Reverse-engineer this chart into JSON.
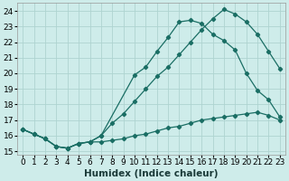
{
  "xlabel": "Humidex (Indice chaleur)",
  "background_color": "#ceecea",
  "grid_color": "#aed4d0",
  "line_color": "#1a6e64",
  "xlim": [
    -0.5,
    23.5
  ],
  "ylim": [
    14.8,
    24.5
  ],
  "xticks": [
    0,
    1,
    2,
    3,
    4,
    5,
    6,
    7,
    8,
    9,
    10,
    11,
    12,
    13,
    14,
    15,
    16,
    17,
    18,
    19,
    20,
    21,
    22,
    23
  ],
  "yticks": [
    15,
    16,
    17,
    18,
    19,
    20,
    21,
    22,
    23,
    24
  ],
  "line1_x": [
    0,
    1,
    2,
    3,
    4,
    5,
    6,
    7,
    8,
    9,
    10,
    11,
    12,
    13,
    14,
    15,
    16,
    17,
    18,
    19,
    20,
    21,
    22,
    23
  ],
  "line1_y": [
    16.4,
    16.1,
    15.8,
    15.3,
    15.2,
    15.5,
    15.6,
    16.0,
    16.8,
    17.4,
    18.2,
    19.0,
    19.8,
    20.4,
    21.2,
    22.0,
    22.8,
    23.5,
    24.1,
    23.8,
    23.3,
    22.5,
    21.4,
    20.3
  ],
  "line2_x": [
    0,
    1,
    2,
    3,
    4,
    5,
    6,
    7,
    10,
    11,
    12,
    13,
    14,
    15,
    16,
    17,
    18,
    19,
    20,
    21,
    22,
    23
  ],
  "line2_y": [
    16.4,
    16.1,
    15.8,
    15.3,
    15.2,
    15.5,
    15.6,
    16.0,
    19.9,
    20.4,
    21.4,
    22.3,
    23.3,
    23.4,
    23.2,
    22.5,
    22.1,
    21.5,
    20.0,
    18.9,
    18.3,
    17.2
  ],
  "line3_x": [
    0,
    1,
    2,
    3,
    4,
    5,
    6,
    7,
    8,
    9,
    10,
    11,
    12,
    13,
    14,
    15,
    16,
    17,
    18,
    19,
    20,
    21,
    22,
    23
  ],
  "line3_y": [
    16.4,
    16.1,
    15.8,
    15.3,
    15.2,
    15.5,
    15.6,
    15.6,
    15.7,
    15.8,
    16.0,
    16.1,
    16.3,
    16.5,
    16.6,
    16.8,
    17.0,
    17.1,
    17.2,
    17.3,
    17.4,
    17.5,
    17.3,
    17.0
  ],
  "axis_fontsize": 7.5,
  "tick_fontsize": 6.5
}
